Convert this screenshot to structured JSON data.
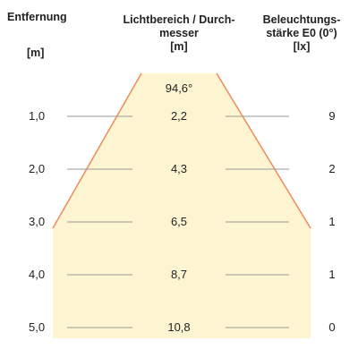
{
  "headers": {
    "distance": "Entfernung",
    "distance_unit": "[m]",
    "diameter": [
      "Lichtbereich / Durch-",
      "messer",
      "[m]"
    ],
    "illuminance": [
      "Beleuchtungs-",
      "stärke E0 (0°)",
      "[lx]"
    ]
  },
  "beam_angle": "94,6°",
  "rows": [
    {
      "distance": "1,0",
      "diameter": "2,2",
      "illuminance": "9"
    },
    {
      "distance": "2,0",
      "diameter": "4,3",
      "illuminance": "2"
    },
    {
      "distance": "3,0",
      "diameter": "6,5",
      "illuminance": "1"
    },
    {
      "distance": "4,0",
      "diameter": "8,7",
      "illuminance": "1"
    },
    {
      "distance": "5,0",
      "diameter": "10,8",
      "illuminance": "0"
    }
  ],
  "colors": {
    "light_cone_fill": "#fdf5d2",
    "cone_edge": "#f08a5a",
    "row_line": "#9a9a9a"
  }
}
